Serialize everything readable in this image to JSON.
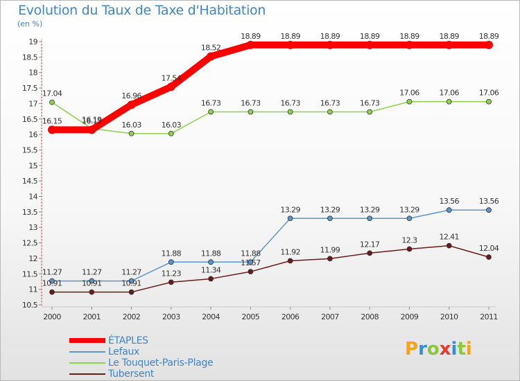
{
  "title": "Evolution du Taux de Taxe d'Habitation",
  "unit": "(en %)",
  "chart_data": {
    "type": "line",
    "title": "Evolution du Taux de Taxe d'Habitation",
    "ylabel": "(en %)",
    "x": [
      "2000",
      "2001",
      "2002",
      "2003",
      "2004",
      "2005",
      "2006",
      "2007",
      "2008",
      "2009",
      "2010",
      "2011"
    ],
    "ylim": [
      10.5,
      19
    ],
    "yticks": [
      "10.5",
      "11",
      "11.5",
      "12",
      "12.5",
      "13",
      "13.5",
      "14",
      "14.5",
      "15",
      "15.5",
      "16",
      "16.5",
      "17",
      "17.5",
      "18",
      "18.5",
      "19"
    ],
    "grid": false,
    "legend": "bottom-left",
    "series": [
      {
        "name": "ÉTAPLES",
        "color": "#ff0000",
        "values": [
          16.15,
          16.15,
          16.96,
          17.54,
          18.52,
          18.89,
          18.89,
          18.89,
          18.89,
          18.89,
          18.89,
          18.89
        ],
        "labels": [
          "16.15",
          "16.15",
          "16.96",
          "17.54",
          "18.52",
          "18.89",
          "18.89",
          "18.89",
          "18.89",
          "18.89",
          "18.89",
          "18.89"
        ]
      },
      {
        "name": "Lefaux",
        "color": "#5b95c9",
        "values": [
          11.27,
          11.27,
          11.27,
          11.88,
          11.88,
          11.88,
          13.29,
          13.29,
          13.29,
          13.29,
          13.56,
          13.56
        ],
        "labels": [
          "11.27",
          "11.27",
          "11.27",
          "11.88",
          "11.88",
          "11.88",
          "13.29",
          "13.29",
          "13.29",
          "13.29",
          "13.56",
          "13.56"
        ]
      },
      {
        "name": "Le Touquet-Paris-Plage",
        "color": "#8fd14f",
        "values": [
          17.04,
          16.19,
          16.03,
          16.03,
          16.73,
          16.73,
          16.73,
          16.73,
          16.73,
          17.06,
          17.06,
          17.06
        ],
        "labels": [
          "17.04",
          "16.19",
          "16.03",
          "16.03",
          "16.73",
          "16.73",
          "16.73",
          "16.73",
          "16.73",
          "17.06",
          "17.06",
          "17.06"
        ]
      },
      {
        "name": "Tubersent",
        "color": "#6b1a1a",
        "values": [
          10.91,
          10.91,
          10.91,
          11.23,
          11.34,
          11.57,
          11.92,
          11.99,
          12.17,
          12.3,
          12.41,
          12.04
        ],
        "labels": [
          "10.91",
          "10.91",
          "10.91",
          "11.23",
          "11.34",
          "11.57",
          "11.92",
          "11.99",
          "12.17",
          "12.3",
          "12.41",
          "12.04"
        ]
      }
    ]
  },
  "logo": {
    "letters": [
      "P",
      "r",
      "o",
      "x",
      "i",
      "t",
      "i"
    ],
    "colors": [
      "#f7a21b",
      "#2f8fd8",
      "#8cc63f",
      "#e63a2e",
      "#2f8fd8",
      "#8cc63f",
      "#f7a21b"
    ]
  }
}
